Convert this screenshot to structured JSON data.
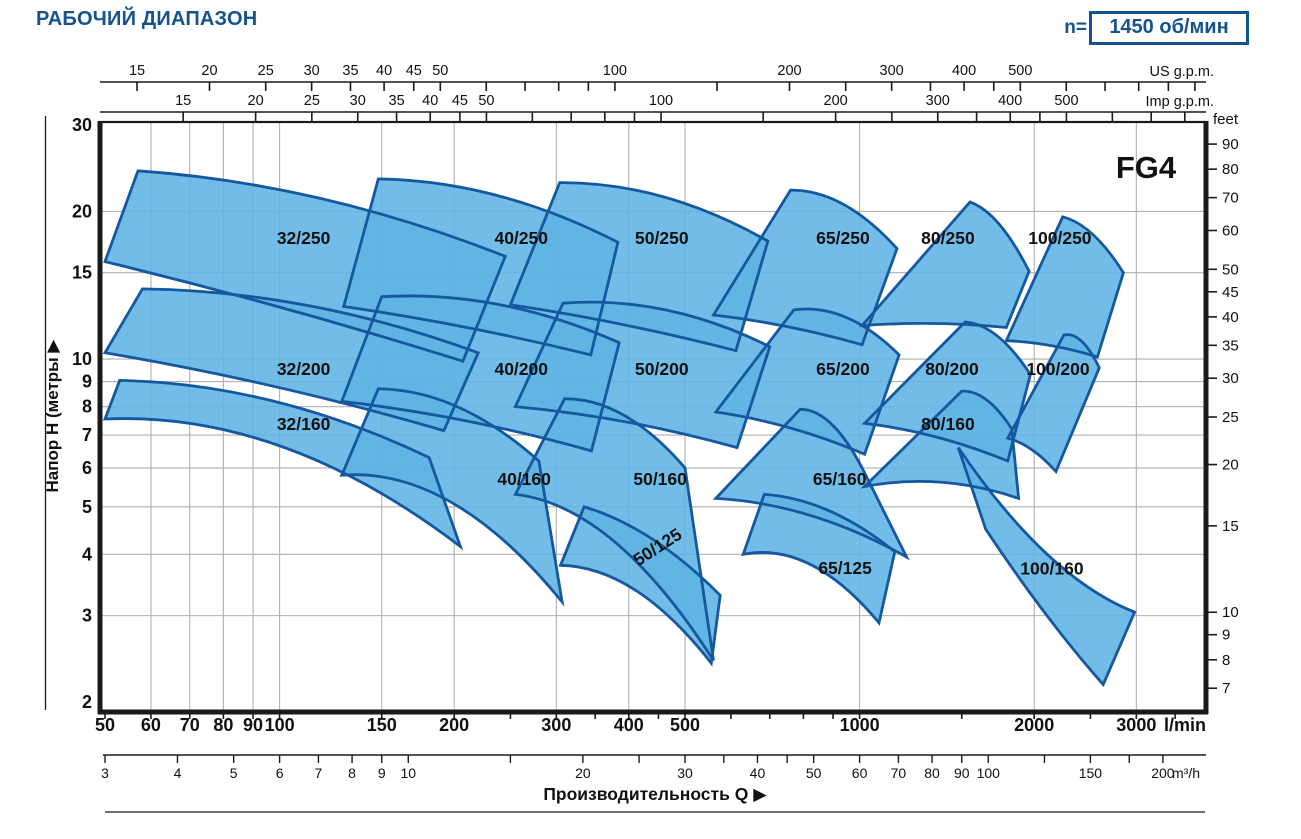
{
  "header": {
    "title": "РАБОЧИЙ ДИАПАЗОН",
    "rpm_label": "n=",
    "rpm_value": "1450 об/мин",
    "accent_color": "#14538f"
  },
  "chart_data": {
    "type": "area",
    "family_label": "FG4",
    "colors": {
      "region_fill": "#5fb4e4",
      "region_stroke": "#15589f",
      "grid": "#b0b0b0",
      "axis": "#1a1a1a",
      "label_text": "#111111"
    },
    "x_scale": {
      "unit": "l/min",
      "min": 50,
      "max": 3960,
      "log": true
    },
    "y_scale": {
      "unit": "m",
      "min": 2,
      "max": 30,
      "log": true
    },
    "axes": {
      "us_gpm": {
        "title": "US g.p.m.",
        "factor_to_lmin": 3.78541,
        "labeled": [
          15,
          20,
          25,
          30,
          35,
          40,
          45,
          50,
          100,
          200,
          300,
          400,
          500
        ],
        "minor": [
          60,
          70,
          80,
          90,
          150,
          250,
          350,
          450,
          600,
          700,
          800,
          900,
          1000
        ]
      },
      "imp_gpm": {
        "title": "Imp g.p.m.",
        "factor_to_lmin": 4.54609,
        "labeled": [
          15,
          20,
          25,
          30,
          35,
          40,
          45,
          50,
          100,
          200,
          300,
          400,
          500
        ],
        "minor": [
          60,
          70,
          80,
          90,
          150,
          250,
          350,
          450,
          600,
          700,
          800
        ]
      },
      "lmin": {
        "title": "l/min",
        "factor_to_lmin": 1,
        "labeled": [
          50,
          60,
          70,
          80,
          90,
          100,
          150,
          200,
          300,
          400,
          500,
          1000,
          2000,
          3000
        ],
        "minor": [
          250,
          350,
          450,
          600,
          700,
          800,
          900,
          1500,
          2500,
          3500
        ]
      },
      "m3h": {
        "title": "m³/h",
        "factor_to_lmin": 16.6667,
        "labeled": [
          3,
          4,
          5,
          6,
          7,
          8,
          9,
          10,
          20,
          30,
          40,
          50,
          60,
          70,
          80,
          90,
          100,
          150,
          200
        ],
        "minor": [
          15,
          25,
          35,
          45,
          125,
          175
        ]
      },
      "meters": {
        "title": "Напор H (метры ▶",
        "labeled": [
          30,
          20,
          15,
          10,
          9,
          8,
          7,
          6,
          5,
          4,
          3,
          2
        ]
      },
      "feet": {
        "title": "feet",
        "factor_to_m": 0.3048,
        "labeled": [
          90,
          80,
          70,
          60,
          50,
          45,
          40,
          35,
          30,
          25,
          20,
          15,
          10,
          9,
          8,
          7
        ]
      }
    },
    "x_axis_label": "Производительность Q ▶",
    "gridlines": {
      "vertical_lmin": [
        60,
        70,
        80,
        90,
        100,
        150,
        200,
        300,
        400,
        500,
        1000,
        2000,
        3000
      ],
      "horizontal_m": [
        3,
        4,
        5,
        6,
        7,
        8,
        9,
        10,
        15,
        20
      ]
    },
    "regions": [
      {
        "name": "32/250",
        "bl": [
          50,
          15.8
        ],
        "tl": [
          57,
          24.2
        ],
        "tr": [
          245,
          16.2
        ],
        "br": [
          207,
          9.9
        ],
        "f_top": 1.15,
        "f_bot": 1.03,
        "label_q": 110,
        "label_h": 17.65,
        "rot": 0
      },
      {
        "name": "40/250",
        "bl": [
          129,
          12.8
        ],
        "tl": [
          148,
          23.3
        ],
        "tr": [
          383,
          17.3
        ],
        "br": [
          344,
          10.2
        ],
        "f_top": 1.15,
        "f_bot": 1.03,
        "label_q": 261,
        "label_h": 17.65,
        "rot": 0
      },
      {
        "name": "50/250",
        "bl": [
          250,
          12.9
        ],
        "tl": [
          304,
          22.9
        ],
        "tr": [
          695,
          17.4
        ],
        "br": [
          612,
          10.4
        ],
        "f_top": 1.15,
        "f_bot": 1.03,
        "label_q": 456,
        "label_h": 17.65,
        "rot": 0
      },
      {
        "name": "65/250",
        "bl": [
          560,
          12.3
        ],
        "tl": [
          760,
          22.1
        ],
        "tr": [
          1160,
          16.8
        ],
        "br": [
          1010,
          10.7
        ],
        "f_top": 1.15,
        "f_bot": 1.03,
        "label_q": 936,
        "label_h": 17.65,
        "rot": 0
      },
      {
        "name": "80/250",
        "bl": [
          1010,
          11.7
        ],
        "tl": [
          1550,
          20.9
        ],
        "tr": [
          1960,
          15.1
        ],
        "br": [
          1790,
          11.6
        ],
        "f_top": 1.12,
        "f_bot": 1.03,
        "label_q": 1420,
        "label_h": 17.65,
        "rot": 0
      },
      {
        "name": "100/250",
        "bl": [
          1790,
          10.9
        ],
        "tl": [
          2240,
          19.5
        ],
        "tr": [
          2850,
          15.0
        ],
        "br": [
          2570,
          10.1
        ],
        "f_top": 1.1,
        "f_bot": 1.03,
        "label_q": 2215,
        "label_h": 17.65,
        "rot": 0
      },
      {
        "name": "32/200",
        "bl": [
          50,
          10.3
        ],
        "tl": [
          58,
          13.9
        ],
        "tr": [
          220,
          10.3
        ],
        "br": [
          192,
          7.15
        ],
        "f_top": 1.15,
        "f_bot": 1.05,
        "label_q": 110,
        "label_h": 9.54,
        "rot": 0
      },
      {
        "name": "40/200",
        "bl": [
          128,
          8.2
        ],
        "tl": [
          150,
          13.4
        ],
        "tr": [
          385,
          10.8
        ],
        "br": [
          345,
          6.5
        ],
        "f_top": 1.15,
        "f_bot": 1.05,
        "label_q": 261,
        "label_h": 9.54,
        "rot": 0
      },
      {
        "name": "50/200",
        "bl": [
          255,
          8.0
        ],
        "tl": [
          308,
          13.0
        ],
        "tr": [
          700,
          10.6
        ],
        "br": [
          615,
          6.6
        ],
        "f_top": 1.15,
        "f_bot": 1.05,
        "label_q": 456,
        "label_h": 9.54,
        "rot": 0
      },
      {
        "name": "65/200",
        "bl": [
          565,
          7.8
        ],
        "tl": [
          770,
          12.6
        ],
        "tr": [
          1170,
          10.2
        ],
        "br": [
          1020,
          6.4
        ],
        "f_top": 1.15,
        "f_bot": 1.05,
        "label_q": 936,
        "label_h": 9.54,
        "rot": 0
      },
      {
        "name": "80/200",
        "bl": [
          1020,
          7.4
        ],
        "tl": [
          1520,
          11.9
        ],
        "tr": [
          1970,
          9.3
        ],
        "br": [
          1800,
          6.2
        ],
        "f_top": 1.12,
        "f_bot": 1.05,
        "label_q": 1443,
        "label_h": 9.54,
        "rot": 0
      },
      {
        "name": "100/200",
        "bl": [
          1800,
          6.9
        ],
        "tl": [
          2250,
          11.2
        ],
        "tr": [
          2590,
          9.6
        ],
        "br": [
          2180,
          5.9
        ],
        "f_top": 1.1,
        "f_bot": 1.05,
        "label_q": 2198,
        "label_h": 9.54,
        "rot": 0
      },
      {
        "name": "32/160",
        "bl": [
          50,
          7.55
        ],
        "tl": [
          53,
          9.05
        ],
        "tr": [
          181,
          6.3
        ],
        "br": [
          205,
          4.15
        ],
        "f_top": 1.18,
        "f_bot": 1.4,
        "label_q": 110,
        "label_h": 7.37,
        "rot": 0
      },
      {
        "name": "40/160",
        "bl": [
          128,
          5.8
        ],
        "tl": [
          148,
          8.7
        ],
        "tr": [
          280,
          6.2
        ],
        "br": [
          307,
          3.2
        ],
        "f_top": 1.18,
        "f_bot": 1.4,
        "label_q": 264,
        "label_h": 5.7,
        "rot": 0
      },
      {
        "name": "50/160",
        "bl": [
          255,
          5.3
        ],
        "tl": [
          310,
          8.3
        ],
        "tr": [
          500,
          6.0
        ],
        "br": [
          560,
          2.43
        ],
        "f_top": 1.18,
        "f_bot": 1.4,
        "label_q": 453,
        "label_h": 5.7,
        "rot": 0
      },
      {
        "name": "65/160",
        "bl": [
          565,
          5.2
        ],
        "tl": [
          790,
          7.9
        ],
        "tr": [
          1010,
          6.0
        ],
        "br": [
          1205,
          3.95
        ],
        "f_top": 1.15,
        "f_bot": 1.12,
        "label_q": 924,
        "label_h": 5.7,
        "rot": 0
      },
      {
        "name": "80/160",
        "bl": [
          1020,
          5.5
        ],
        "tl": [
          1500,
          8.6
        ],
        "tr": [
          1830,
          7.2
        ],
        "br": [
          1880,
          5.2
        ],
        "f_top": 1.1,
        "f_bot": 1.1,
        "label_q": 1420,
        "label_h": 7.37,
        "rot": 0
      },
      {
        "name": "100/160",
        "bl": [
          1650,
          4.5
        ],
        "tl": [
          1480,
          6.6
        ],
        "tr": [
          2980,
          3.05
        ],
        "br": [
          2630,
          2.17
        ],
        "f_top": 0.8,
        "f_bot": 0.95,
        "label_q": 2146,
        "label_h": 3.74,
        "rot": 0
      },
      {
        "name": "50/125",
        "bl": [
          305,
          3.8
        ],
        "tl": [
          335,
          5.0
        ],
        "tr": [
          575,
          3.3
        ],
        "br": [
          555,
          2.4
        ],
        "f_top": 1.12,
        "f_bot": 1.25,
        "label_q": 454,
        "label_h": 4.16,
        "rot": -33
      },
      {
        "name": "65/125",
        "bl": [
          630,
          4.0
        ],
        "tl": [
          685,
          5.3
        ],
        "tr": [
          1150,
          4.05
        ],
        "br": [
          1080,
          2.9
        ],
        "f_top": 1.12,
        "f_bot": 1.25,
        "label_q": 944,
        "label_h": 3.75,
        "rot": 0
      }
    ]
  }
}
